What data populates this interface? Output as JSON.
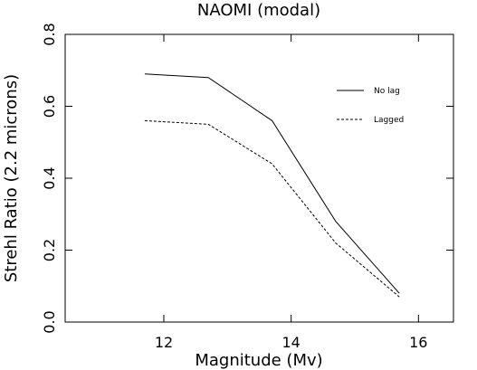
{
  "chart_data": {
    "type": "line",
    "title": "NAOMI (modal)",
    "xlabel": "Magnitude (Mv)",
    "ylabel": "Strehl Ratio (2.2 microns)",
    "xlim": [
      10.45,
      16.55
    ],
    "ylim": [
      0.0,
      0.8
    ],
    "xticks": [
      12,
      14,
      16
    ],
    "xtick_labels": [
      "12",
      "14",
      "16"
    ],
    "yticks": [
      0.0,
      0.2,
      0.4,
      0.6,
      0.8
    ],
    "ytick_labels": [
      "0.0",
      "0.2",
      "0.4",
      "0.6",
      "0.8"
    ],
    "grid": false,
    "legend_position": "top-right",
    "series": [
      {
        "name": "No lag",
        "style": "solid",
        "color": "#000000",
        "x": [
          11.7,
          12.7,
          13.7,
          14.7,
          15.7
        ],
        "y": [
          0.69,
          0.68,
          0.56,
          0.28,
          0.08
        ]
      },
      {
        "name": "Lagged",
        "style": "dashed",
        "color": "#000000",
        "x": [
          11.7,
          12.7,
          13.7,
          14.7,
          15.7
        ],
        "y": [
          0.56,
          0.55,
          0.44,
          0.22,
          0.07
        ]
      }
    ]
  }
}
